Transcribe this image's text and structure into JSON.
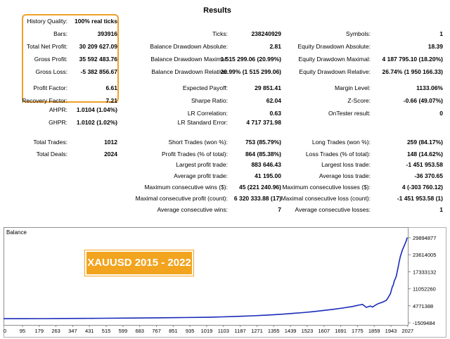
{
  "title": "Results",
  "highlight_color": "#f0a028",
  "stats": {
    "col1": [
      {
        "label": "History Quality:",
        "value": "100% real ticks"
      },
      {
        "label": "Bars:",
        "value": "393916"
      },
      {
        "label": "Total Net Profit:",
        "value": "30 209 627.09"
      },
      {
        "label": "Gross Profit:",
        "value": "35 592 483.76"
      },
      {
        "label": "Gross Loss:",
        "value": "-5 382 856.67"
      },
      {
        "label": "Profit Factor:",
        "value": "6.61"
      },
      {
        "label": "Recovery Factor:",
        "value": "7.21"
      },
      {
        "label": "AHPR:",
        "value": "1.0104 (1.04%)"
      },
      {
        "label": "GHPR:",
        "value": "1.0102 (1.02%)"
      },
      {
        "label": "Total Trades:",
        "value": "1012"
      },
      {
        "label": "Total Deals:",
        "value": "2024"
      }
    ],
    "col2": [
      {
        "label": "Ticks:",
        "value": "238240929"
      },
      {
        "label": "Balance Drawdown Absolute:",
        "value": "2.81"
      },
      {
        "label": "Balance Drawdown Maximal:",
        "value": "1 515 299.06 (20.99%)"
      },
      {
        "label": "Balance Drawdown Relative:",
        "value": "20.99% (1 515 299.06)"
      },
      {
        "label": "Expected Payoff:",
        "value": "29 851.41"
      },
      {
        "label": "Sharpe Ratio:",
        "value": "62.04"
      },
      {
        "label": "LR Correlation:",
        "value": "0.63"
      },
      {
        "label": "LR Standard Error:",
        "value": "4 717 371.98"
      },
      {
        "label": "Short Trades (won %):",
        "value": "753 (85.79%)"
      },
      {
        "label": "Profit Trades (% of total):",
        "value": "864 (85.38%)"
      },
      {
        "label": "Largest profit trade:",
        "value": "883 646.43"
      },
      {
        "label": "Average profit trade:",
        "value": "41 195.00"
      },
      {
        "label": "Maximum consecutive wins ($):",
        "value": "45 (221 240.96)"
      },
      {
        "label": "Maximal consecutive profit (count):",
        "value": "6 320 333.88 (17)"
      },
      {
        "label": "Average consecutive wins:",
        "value": "7"
      }
    ],
    "col3": [
      {
        "label": "Symbols:",
        "value": "1"
      },
      {
        "label": "Equity Drawdown Absolute:",
        "value": "18.39"
      },
      {
        "label": "Equity Drawdown Maximal:",
        "value": "4 187 795.10 (18.20%)"
      },
      {
        "label": "Equity Drawdown Relative:",
        "value": "26.74% (1 950 166.33)"
      },
      {
        "label": "Margin Level:",
        "value": "1133.06%"
      },
      {
        "label": "Z-Score:",
        "value": "-0.66 (49.07%)"
      },
      {
        "label": "OnTester result:",
        "value": "0"
      },
      {
        "label": "Long Trades (won %):",
        "value": "259 (84.17%)"
      },
      {
        "label": "Loss Trades (% of total):",
        "value": "148 (14.62%)"
      },
      {
        "label": "Largest loss trade:",
        "value": "-1 451 953.58"
      },
      {
        "label": "Average loss trade:",
        "value": "-36 370.65"
      },
      {
        "label": "Maximum consecutive losses ($):",
        "value": "4 (-303 760.12)"
      },
      {
        "label": "Maximal consecutive loss (count):",
        "value": "-1 451 953.58 (1)"
      },
      {
        "label": "Average consecutive losses:",
        "value": "1"
      }
    ]
  },
  "badge": {
    "text": "XAUUSD 2015 - 2022",
    "color": "#f2a41f"
  },
  "chart_data": {
    "type": "line",
    "title": "Balance",
    "series_color": "#1a2bb8",
    "x_ticks": [
      "0",
      "95",
      "179",
      "263",
      "347",
      "431",
      "515",
      "599",
      "683",
      "767",
      "851",
      "935",
      "1019",
      "1103",
      "1187",
      "1271",
      "1355",
      "1439",
      "1523",
      "1607",
      "1691",
      "1775",
      "1859",
      "1943",
      "2027"
    ],
    "y_ticks": [
      "29894877",
      "23614005",
      "17333132",
      "11052260",
      "4771388",
      "-1509484"
    ],
    "ylim": [
      -1509484,
      29894877
    ],
    "xlim": [
      0,
      2024
    ],
    "x": [
      0,
      100,
      200,
      300,
      400,
      500,
      600,
      700,
      800,
      900,
      1000,
      1050,
      1100,
      1150,
      1200,
      1250,
      1300,
      1350,
      1400,
      1450,
      1500,
      1550,
      1600,
      1650,
      1700,
      1750,
      1780,
      1800,
      1820,
      1840,
      1850,
      1870,
      1880,
      1900,
      1920,
      1930,
      1940,
      1950,
      1955,
      1960,
      1965,
      1970,
      1975,
      1980,
      1985,
      1990,
      2000,
      2010,
      2020,
      2024
    ],
    "values": [
      10000,
      30000,
      60000,
      90000,
      130000,
      170000,
      230000,
      290000,
      360000,
      430000,
      520000,
      600000,
      690000,
      800000,
      930000,
      1080000,
      1260000,
      1460000,
      1690000,
      1960000,
      2250000,
      2600000,
      3000000,
      3450000,
      3950000,
      4500000,
      5000000,
      5300000,
      4200000,
      4700000,
      4300000,
      5200000,
      5600000,
      6100000,
      6800000,
      7900000,
      9200000,
      11800000,
      12500000,
      14000000,
      14800000,
      15800000,
      17600000,
      19400000,
      21200000,
      23000000,
      25300000,
      27000000,
      28800000,
      29894877
    ]
  }
}
